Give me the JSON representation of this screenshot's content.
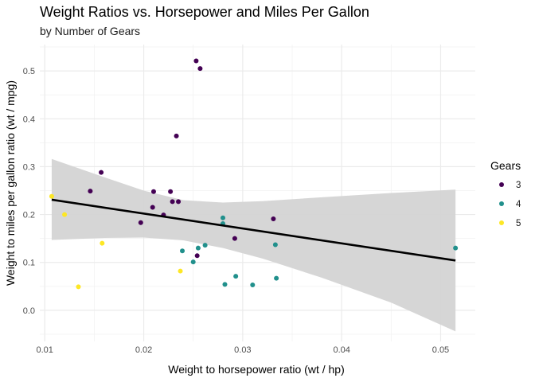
{
  "chart_data": {
    "type": "scatter",
    "title": "Weight Ratios vs. Horsepower and Miles Per Gallon",
    "subtitle": "by Number of Gears",
    "xlabel": "Weight to horsepower ratio (wt / hp)",
    "ylabel": "Weight to miles per gallon ratio (wt / mpg)",
    "xlim": [
      0.0095,
      0.0535
    ],
    "ylim": [
      -0.065,
      0.555
    ],
    "x_ticks": [
      0.01,
      0.02,
      0.03,
      0.04,
      0.05
    ],
    "x_tick_labels": [
      "0.01",
      "0.02",
      "0.03",
      "0.04",
      "0.05"
    ],
    "y_ticks": [
      0.0,
      0.1,
      0.2,
      0.3,
      0.4,
      0.5
    ],
    "y_tick_labels": [
      "0.0",
      "0.1",
      "0.2",
      "0.3",
      "0.4",
      "0.5"
    ],
    "grid": true,
    "legend": {
      "title": "Gears",
      "position": "right"
    },
    "series": [
      {
        "name": "3",
        "color": "#440154",
        "points": [
          {
            "x": 0.0253,
            "y": 0.521
          },
          {
            "x": 0.0257,
            "y": 0.505
          },
          {
            "x": 0.0233,
            "y": 0.364
          },
          {
            "x": 0.0157,
            "y": 0.288
          },
          {
            "x": 0.0146,
            "y": 0.249
          },
          {
            "x": 0.021,
            "y": 0.248
          },
          {
            "x": 0.0227,
            "y": 0.248
          },
          {
            "x": 0.0229,
            "y": 0.227
          },
          {
            "x": 0.0235,
            "y": 0.227
          },
          {
            "x": 0.0209,
            "y": 0.215
          },
          {
            "x": 0.022,
            "y": 0.199
          },
          {
            "x": 0.0197,
            "y": 0.183
          },
          {
            "x": 0.0331,
            "y": 0.191
          },
          {
            "x": 0.0292,
            "y": 0.15
          },
          {
            "x": 0.0254,
            "y": 0.114
          }
        ]
      },
      {
        "name": "4",
        "color": "#21908C",
        "points": [
          {
            "x": 0.028,
            "y": 0.193
          },
          {
            "x": 0.028,
            "y": 0.181
          },
          {
            "x": 0.0333,
            "y": 0.137
          },
          {
            "x": 0.0262,
            "y": 0.136
          },
          {
            "x": 0.0255,
            "y": 0.13
          },
          {
            "x": 0.0239,
            "y": 0.124
          },
          {
            "x": 0.025,
            "y": 0.101
          },
          {
            "x": 0.0293,
            "y": 0.071
          },
          {
            "x": 0.0334,
            "y": 0.067
          },
          {
            "x": 0.0282,
            "y": 0.054
          },
          {
            "x": 0.031,
            "y": 0.053
          },
          {
            "x": 0.0515,
            "y": 0.13
          }
        ]
      },
      {
        "name": "5",
        "color": "#FDE725",
        "points": [
          {
            "x": 0.0107,
            "y": 0.238
          },
          {
            "x": 0.012,
            "y": 0.2
          },
          {
            "x": 0.0158,
            "y": 0.14
          },
          {
            "x": 0.0237,
            "y": 0.082
          },
          {
            "x": 0.0134,
            "y": 0.049
          }
        ]
      }
    ],
    "regression": {
      "color": "#000000",
      "line": [
        {
          "x": 0.0107,
          "y": 0.231
        },
        {
          "x": 0.0515,
          "y": 0.104
        }
      ],
      "band_color": "#d4d4d4",
      "band_upper": [
        {
          "x": 0.0107,
          "y": 0.316
        },
        {
          "x": 0.016,
          "y": 0.278
        },
        {
          "x": 0.02,
          "y": 0.25
        },
        {
          "x": 0.024,
          "y": 0.23
        },
        {
          "x": 0.028,
          "y": 0.225
        },
        {
          "x": 0.032,
          "y": 0.228
        },
        {
          "x": 0.038,
          "y": 0.236
        },
        {
          "x": 0.045,
          "y": 0.245
        },
        {
          "x": 0.0515,
          "y": 0.252
        }
      ],
      "band_lower": [
        {
          "x": 0.0107,
          "y": 0.147
        },
        {
          "x": 0.016,
          "y": 0.151
        },
        {
          "x": 0.02,
          "y": 0.152
        },
        {
          "x": 0.024,
          "y": 0.146
        },
        {
          "x": 0.028,
          "y": 0.13
        },
        {
          "x": 0.032,
          "y": 0.108
        },
        {
          "x": 0.038,
          "y": 0.068
        },
        {
          "x": 0.045,
          "y": 0.016
        },
        {
          "x": 0.0515,
          "y": -0.044
        }
      ]
    }
  }
}
